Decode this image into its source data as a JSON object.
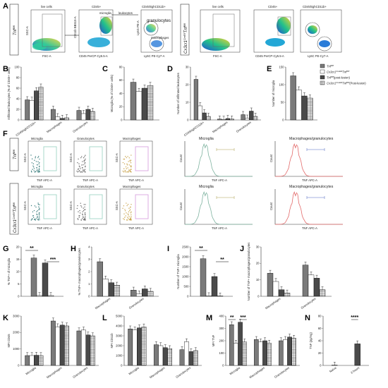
{
  "panels": {
    "A": "A",
    "B": "B",
    "C": "C",
    "D": "D",
    "E": "E",
    "F": "F",
    "G": "G",
    "H": "H",
    "I": "I",
    "J": "J",
    "K": "K",
    "L": "L",
    "M": "M",
    "N": "N"
  },
  "genotypes": {
    "control": "Tnf",
    "control_sup": "fl/fl",
    "cko": "Cx3cr1",
    "cko_sup": "CreER",
    "cko_tail": "Tnf",
    "cko_tail_sup": "fl/fl"
  },
  "flow_A": {
    "live_cells": "live cells",
    "cd45": "CD45+",
    "cd45high": "CD45highCD11b+",
    "microglia": "microglia",
    "leukocytes": "leukocytes",
    "granulocytes": "granulocytes",
    "macrophages": "macrophages",
    "x_fsc": "FSC-A",
    "y_ssc": "SSC-A",
    "x_cd45": "CD45 PerCP-Cy5.5-A",
    "y_cd11b": "CD11b BB515-A",
    "x_ly6c": "Ly6C PE-Cy7-A",
    "y_ly6g": "Ly6G PE-A"
  },
  "flow_F": {
    "microglia": "Microglia",
    "granulocytes": "Granulocytes",
    "macrophages": "Macrophages",
    "macro_gran": "Macrophages/granulocytes",
    "x_tnf": "TNF APC-A",
    "y_ssc": "SSC-A",
    "y_count": "Count"
  },
  "legend": {
    "s1": "Tnf",
    "s1_sup": "fl/fl",
    "s2": "Cx3cr1",
    "s2_sup": "CreER",
    "s2_tail": "Tnf",
    "s2_tail_sup": "fl/fl",
    "s3": "Tnf",
    "s3_sup": "fl/fl",
    "s3_note": "(post-lesion)",
    "s4": "Cx3cr1",
    "s4_sup": "CreER",
    "s4_tail": "Tnf",
    "s4_tail_sup": "fl/fl",
    "s4_note": "(Post-lesion)"
  },
  "colors": {
    "s1": "#7a7a7a",
    "s2": "#ffffff",
    "s3": "#4a4a4a",
    "s4": "hatch",
    "microglia_hist": "#7fb3a0",
    "macro_hist": "#e36a6a",
    "gate_green": "#9fd6c6",
    "gate_purple": "#d9a6e0"
  },
  "chart_data": [
    {
      "id": "B",
      "type": "bar",
      "ylabel": "Infiltrated leukocytes (% of CD45+ cells)",
      "ylim": [
        0,
        100
      ],
      "yticks": [
        "0",
        "20",
        "40",
        "60",
        "80",
        "100"
      ],
      "categories": [
        "CD45highCD11b+",
        "Macrophages",
        "Granulocytes"
      ],
      "series": [
        {
          "values": [
            38,
            20,
            18
          ]
        },
        {
          "values": [
            37,
            6,
            12
          ]
        },
        {
          "values": [
            55,
            3,
            20
          ]
        },
        {
          "values": [
            62,
            4,
            16
          ]
        }
      ]
    },
    {
      "id": "C",
      "type": "bar",
      "ylabel": "Microglia (% of CD45+ cells)",
      "ylim": [
        0,
        80
      ],
      "yticks": [
        "0",
        "20",
        "40",
        "60",
        "80"
      ],
      "categories": [
        ""
      ],
      "series": [
        {
          "values": [
            57
          ]
        },
        {
          "values": [
            43
          ]
        },
        {
          "values": [
            48
          ]
        },
        {
          "values": [
            52
          ]
        }
      ]
    },
    {
      "id": "D",
      "type": "bar",
      "ylabel": "Number of infiltrated leukocytes",
      "ylim": [
        0,
        30
      ],
      "yticks": [
        "0",
        "10",
        "20",
        "30"
      ],
      "categories": [
        "CD45highCD11b+",
        "Macrophages",
        "Granulocytes"
      ],
      "series": [
        {
          "values": [
            23,
            0.5,
            3
          ]
        },
        {
          "values": [
            8,
            0.3,
            1
          ]
        },
        {
          "values": [
            4,
            0.8,
            5
          ]
        },
        {
          "values": [
            2,
            0.5,
            2
          ]
        }
      ]
    },
    {
      "id": "E",
      "type": "bar",
      "ylabel": "Number of microglia",
      "ylim": [
        0,
        150
      ],
      "yticks": [
        "0",
        "50",
        "100",
        "150"
      ],
      "categories": [
        ""
      ],
      "series": [
        {
          "values": [
            125
          ]
        },
        {
          "values": [
            85
          ]
        },
        {
          "values": [
            68
          ]
        },
        {
          "values": [
            62
          ]
        }
      ]
    },
    {
      "id": "G",
      "type": "bar",
      "ylabel": "% TNF+ of microglia",
      "ylim": [
        0,
        20
      ],
      "yticks": [
        "0",
        "5",
        "10",
        "15",
        "20"
      ],
      "categories": [
        ""
      ],
      "series": [
        {
          "values": [
            15.5
          ]
        },
        {
          "values": [
            0.3
          ]
        },
        {
          "values": [
            13.5
          ]
        },
        {
          "values": [
            0.3
          ]
        }
      ],
      "annotations": [
        "**",
        "***"
      ]
    },
    {
      "id": "H",
      "type": "bar",
      "ylabel": "% TNF+ macrophages/granulocytes",
      "ylim": [
        0,
        4
      ],
      "yticks": [
        "0",
        "1",
        "2",
        "3",
        "4"
      ],
      "categories": [
        "Macrophages",
        "Granulocytes"
      ],
      "series": [
        {
          "values": [
            2.8,
            0.5
          ]
        },
        {
          "values": [
            1.4,
            0.2
          ]
        },
        {
          "values": [
            1.1,
            0.6
          ]
        },
        {
          "values": [
            0.9,
            0.4
          ]
        }
      ]
    },
    {
      "id": "I",
      "type": "bar",
      "ylabel": "Number of TNF+ microglia",
      "ylim": [
        0,
        2500
      ],
      "yticks": [
        "0",
        "500",
        "1000",
        "1500",
        "2000",
        "2500"
      ],
      "categories": [
        ""
      ],
      "series": [
        {
          "values": [
            1900
          ]
        },
        {
          "values": [
            30
          ]
        },
        {
          "values": [
            1000
          ]
        },
        {
          "values": [
            20
          ]
        }
      ],
      "annotations": [
        "**",
        "**"
      ]
    },
    {
      "id": "J",
      "type": "bar",
      "ylabel": "Number of TNF+ macrophages/granulocytes",
      "ylim": [
        0,
        30
      ],
      "yticks": [
        "0",
        "10",
        "20",
        "30"
      ],
      "categories": [
        "Macrophages",
        "Granulocytes"
      ],
      "series": [
        {
          "values": [
            14,
            19
          ]
        },
        {
          "values": [
            9,
            13
          ]
        },
        {
          "values": [
            4,
            11
          ]
        },
        {
          "values": [
            2,
            4
          ]
        }
      ]
    },
    {
      "id": "K",
      "type": "bar",
      "ylabel": "MFI CD45",
      "ylim": [
        0,
        3000
      ],
      "yticks": [
        "0",
        "1000",
        "2000",
        "3000"
      ],
      "categories": [
        "Microglia",
        "Macrophages",
        "Granulocytes"
      ],
      "series": [
        {
          "values": [
            600,
            2700,
            2100
          ]
        },
        {
          "values": [
            600,
            2350,
            2150
          ]
        },
        {
          "values": [
            620,
            2450,
            1850
          ]
        },
        {
          "values": [
            600,
            2400,
            1800
          ]
        }
      ]
    },
    {
      "id": "L",
      "type": "bar",
      "ylabel": "MFI CD11b",
      "ylim": [
        0,
        5000
      ],
      "yticks": [
        "0",
        "1000",
        "2000",
        "3000",
        "4000",
        "5000"
      ],
      "categories": [
        "Microglia",
        "Macrophages",
        "Granulocytes"
      ],
      "series": [
        {
          "values": [
            3700,
            2100,
            1600
          ]
        },
        {
          "values": [
            3600,
            2000,
            2400
          ]
        },
        {
          "values": [
            3800,
            1800,
            1400
          ]
        },
        {
          "values": [
            3900,
            1700,
            1500
          ]
        }
      ]
    },
    {
      "id": "M",
      "type": "bar",
      "ylabel": "MFI TNF",
      "ylim": [
        0,
        400
      ],
      "yticks": [
        "0",
        "100",
        "200",
        "300",
        "400"
      ],
      "categories": [
        "Microglia",
        "Macrophages",
        "Granulocytes"
      ],
      "series": [
        {
          "values": [
            330,
            210,
            200
          ]
        },
        {
          "values": [
            180,
            190,
            210
          ]
        },
        {
          "values": [
            350,
            200,
            230
          ]
        },
        {
          "values": [
            190,
            180,
            220
          ]
        }
      ],
      "annotations": [
        "**",
        "***"
      ]
    },
    {
      "id": "N",
      "type": "bar",
      "ylabel": "TNF (pg/mg)",
      "ylim": [
        0,
        80
      ],
      "yticks": [
        "0",
        "20",
        "40",
        "60",
        "80"
      ],
      "categories": [
        "Naïve",
        "3 hours"
      ],
      "series": [
        {
          "values": [
            0.5,
            35
          ]
        }
      ],
      "annotations": [
        "****"
      ]
    }
  ]
}
